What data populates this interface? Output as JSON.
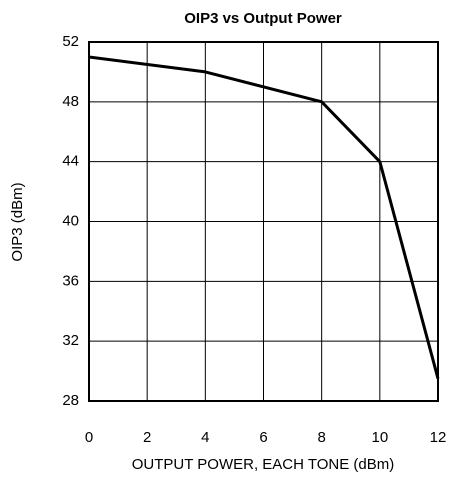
{
  "chart_data": {
    "type": "line",
    "title": "OIP3 vs Output Power",
    "x_label": "OUTPUT POWER, EACH TONE (dBm)",
    "y_label": "OIP3 (dBm)",
    "x": [
      0,
      4,
      8,
      10,
      12
    ],
    "series": [
      {
        "color": "#000000",
        "values": [
          51,
          50,
          48,
          44,
          29.5
        ]
      }
    ],
    "xlim": [
      0,
      12
    ],
    "xticks": [
      0,
      2,
      4,
      6,
      8,
      10,
      12
    ],
    "ylim": [
      28,
      52
    ],
    "yticks": [
      28,
      32,
      36,
      40,
      44,
      48,
      52
    ],
    "grid": true
  }
}
